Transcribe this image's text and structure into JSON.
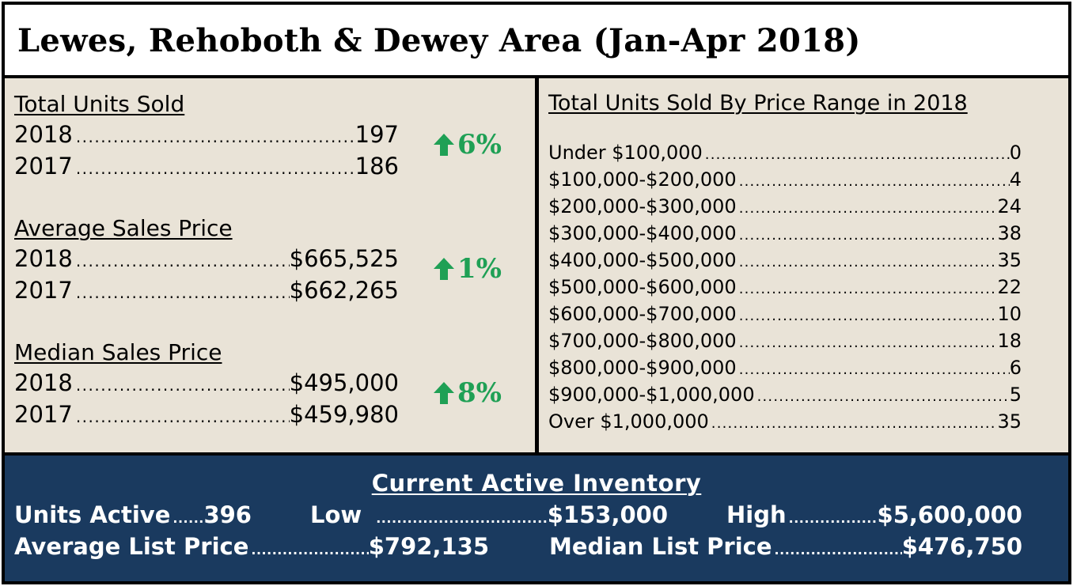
{
  "title": "Lewes, Rehoboth & Dewey Area (Jan-Apr 2018)",
  "left_panel": {
    "sections": [
      {
        "heading": "Total Units Sold",
        "rows": [
          {
            "year": "2018",
            "value": "197"
          },
          {
            "year": "2017",
            "value": "186"
          }
        ],
        "change": "6%",
        "change_direction": "up"
      },
      {
        "heading": "Average Sales Price",
        "rows": [
          {
            "year": "2018",
            "value": "$665,525"
          },
          {
            "year": "2017",
            "value": "$662,265"
          }
        ],
        "change": "1%",
        "change_direction": "up"
      },
      {
        "heading": "Median Sales Price",
        "rows": [
          {
            "year": "2018",
            "value": "$495,000"
          },
          {
            "year": "2017",
            "value": "$459,980"
          }
        ],
        "change": "8%",
        "change_direction": "up"
      }
    ]
  },
  "right_panel": {
    "heading": "Total Units Sold By Price Range in 2018",
    "ranges": [
      {
        "label": "Under $100,000",
        "value": "0"
      },
      {
        "label": "$100,000-$200,000",
        "value": "4"
      },
      {
        "label": "$200,000-$300,000",
        "value": "24"
      },
      {
        "label": "$300,000-$400,000",
        "value": "38"
      },
      {
        "label": "$400,000-$500,000",
        "value": "35"
      },
      {
        "label": "$500,000-$600,000",
        "value": "22"
      },
      {
        "label": "$600,000-$700,000",
        "value": "10"
      },
      {
        "label": "$700,000-$800,000",
        "value": "18"
      },
      {
        "label": "$800,000-$900,000",
        "value": "6"
      },
      {
        "label": "$900,000-$1,000,000",
        "value": "5"
      },
      {
        "label": "Over $1,000,000",
        "value": "35"
      }
    ]
  },
  "inventory": {
    "heading": "Current Active Inventory",
    "units_active_label": "Units Active",
    "units_active_value": "396",
    "low_label": "Low",
    "low_value": "$153,000",
    "high_label": "High",
    "high_value": "$5,600,000",
    "avg_list_label": "Average List Price",
    "avg_list_value": "$792,135",
    "median_list_label": "Median List Price",
    "median_list_value": "$476,750"
  },
  "colors": {
    "panel_bg": "#e9e3d7",
    "inventory_bg": "#1a3a5f",
    "up_green": "#1fa055"
  }
}
